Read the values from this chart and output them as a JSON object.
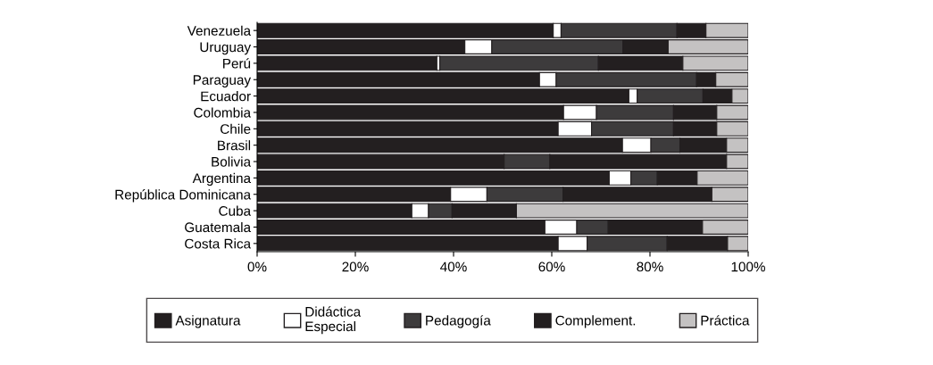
{
  "chart_data": {
    "type": "bar",
    "orientation": "horizontal",
    "stacked": true,
    "categories": [
      "Venezuela",
      "Uruguay",
      "Perú",
      "Paraguay",
      "Ecuador",
      "Colombia",
      "Chile",
      "Brasil",
      "Bolivia",
      "Argentina",
      "República Dominicana",
      "Cuba",
      "Guatemala",
      "Costa Rica"
    ],
    "series": [
      {
        "name": "Asignatura",
        "color": "#231f20",
        "values": [
          60.3,
          42.3,
          36.6,
          57.5,
          75.7,
          62.4,
          61.3,
          74.4,
          50.3,
          71.7,
          39.4,
          31.5,
          58.6,
          61.3
        ]
      },
      {
        "name": "Didáctica Especial",
        "color": "#ffffff",
        "values": [
          1.6,
          5.5,
          0.6,
          3.4,
          1.7,
          6.7,
          6.8,
          5.8,
          0,
          4.4,
          7.4,
          3.4,
          6.5,
          5.9
        ]
      },
      {
        "name": "Pedagogía",
        "color": "#3d3b3c",
        "values": [
          23.6,
          26.7,
          32.3,
          28.6,
          13.4,
          15.7,
          16.7,
          5.9,
          9.3,
          5.4,
          15.5,
          4.8,
          6.4,
          16.3
        ]
      },
      {
        "name": "Complement.",
        "color": "#231f20",
        "values": [
          5.9,
          9.2,
          17.2,
          3.9,
          5.9,
          8.8,
          8.8,
          9.5,
          36.0,
          8.1,
          30.3,
          13.1,
          19.2,
          12.3
        ]
      },
      {
        "name": "Práctica",
        "color": "#c4c2c2",
        "values": [
          8.6,
          16.3,
          13.3,
          6.6,
          3.3,
          6.4,
          6.4,
          4.4,
          4.4,
          10.4,
          7.4,
          47.2,
          9.3,
          4.2
        ]
      }
    ],
    "xlim": [
      0,
      100
    ],
    "xticks": [
      {
        "value": 0,
        "label": "0%"
      },
      {
        "value": 20,
        "label": "20%"
      },
      {
        "value": 40,
        "label": "40%"
      },
      {
        "value": 60,
        "label": "60%"
      },
      {
        "value": 80,
        "label": "80%"
      },
      {
        "value": 100,
        "label": "100%"
      }
    ],
    "grid": false,
    "legend": "bottom"
  }
}
